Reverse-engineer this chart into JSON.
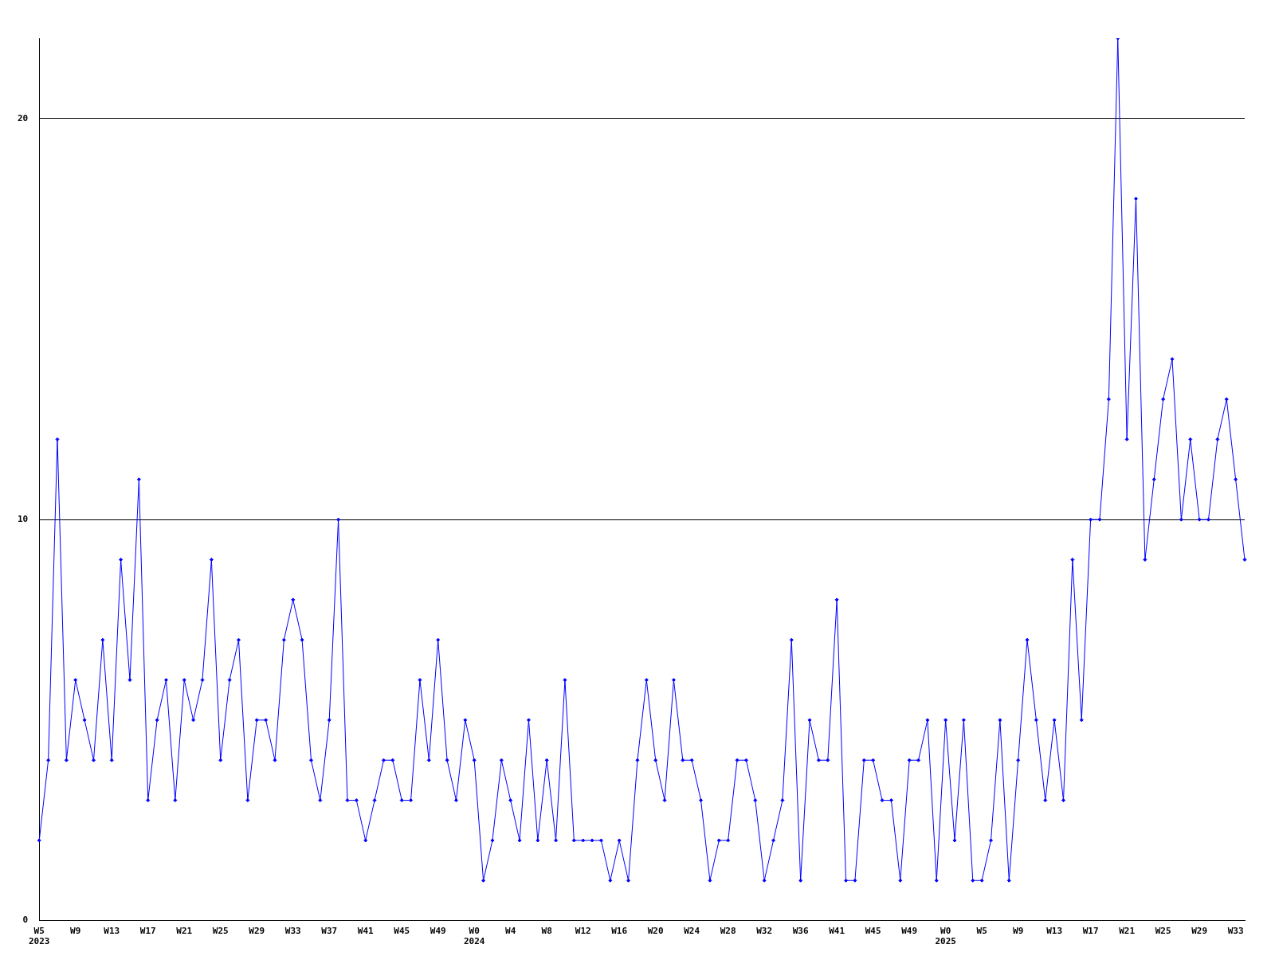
{
  "chart_data": {
    "type": "line",
    "categories": [
      "W5\n2023",
      null,
      null,
      null,
      "W9",
      null,
      null,
      null,
      "W13",
      null,
      null,
      null,
      "W17",
      null,
      null,
      null,
      "W21",
      null,
      null,
      null,
      "W25",
      null,
      null,
      null,
      "W29",
      null,
      null,
      null,
      "W33",
      null,
      null,
      null,
      "W37",
      null,
      null,
      null,
      "W41",
      null,
      null,
      null,
      "W45",
      null,
      null,
      null,
      "W49",
      null,
      null,
      null,
      "W0\n2024",
      null,
      null,
      null,
      "W4",
      null,
      null,
      null,
      "W8",
      null,
      null,
      null,
      "W12",
      null,
      null,
      null,
      "W16",
      null,
      null,
      null,
      "W20",
      null,
      null,
      null,
      "W24",
      null,
      null,
      null,
      "W28",
      null,
      null,
      null,
      "W32",
      null,
      null,
      null,
      "W36",
      null,
      null,
      null,
      "W41",
      null,
      null,
      null,
      "W45",
      null,
      null,
      null,
      "W49",
      null,
      null,
      null,
      "W0\n2025",
      null,
      null,
      null,
      "W5",
      null,
      null,
      null,
      "W9",
      null,
      null,
      null,
      "W13",
      null,
      null,
      null,
      "W17",
      null,
      null,
      null,
      "W21",
      null,
      null,
      null,
      "W25",
      null,
      null,
      null,
      "W29",
      null,
      null,
      null,
      "W33",
      null
    ],
    "series": [
      {
        "color": "#0000ff",
        "values": [
          2,
          4,
          12,
          4,
          6,
          5,
          4,
          7,
          4,
          9,
          6,
          11,
          3,
          5,
          6,
          3,
          6,
          5,
          6,
          9,
          4,
          6,
          7,
          3,
          5,
          5,
          4,
          7,
          8,
          7,
          4,
          3,
          5,
          10,
          3,
          3,
          2,
          3,
          4,
          4,
          3,
          3,
          6,
          4,
          7,
          4,
          3,
          5,
          4,
          1,
          2,
          4,
          3,
          2,
          5,
          2,
          4,
          2,
          6,
          2,
          2,
          2,
          2,
          1,
          2,
          1,
          4,
          6,
          4,
          3,
          6,
          4,
          4,
          3,
          1,
          2,
          2,
          4,
          4,
          3,
          1,
          2,
          3,
          7,
          1,
          5,
          4,
          4,
          8,
          1,
          1,
          4,
          4,
          3,
          3,
          1,
          4,
          4,
          5,
          1,
          5,
          2,
          5,
          1,
          1,
          2,
          5,
          1,
          4,
          7,
          5,
          3,
          5,
          3,
          9,
          5,
          10,
          10,
          13,
          22,
          12,
          18,
          9,
          11,
          13,
          14,
          10,
          12,
          10,
          10,
          12,
          13,
          11,
          9
        ]
      }
    ],
    "ylim": [
      0,
      22
    ],
    "yticks": [
      0,
      10,
      20
    ],
    "grid": "y",
    "marker": "diamond",
    "line_style": "solid",
    "legend": false
  }
}
